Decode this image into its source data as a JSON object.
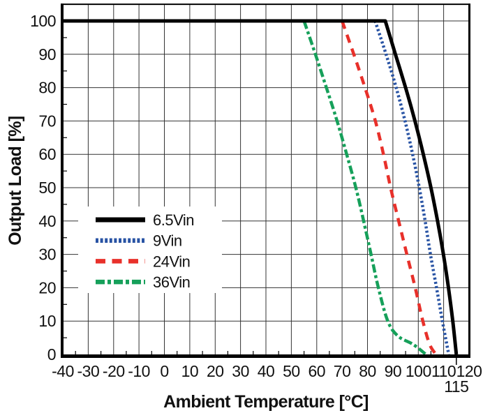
{
  "figure": {
    "background": "#ffffff"
  },
  "chart_data": {
    "type": "line",
    "title": "",
    "xlabel": "Ambient Temperature [°C]",
    "ylabel": "Output Load [%]",
    "xlim": [
      -40,
      120
    ],
    "ylim": [
      0,
      105
    ],
    "x_ticks": [
      -40,
      -30,
      -20,
      -10,
      0,
      10,
      20,
      30,
      40,
      50,
      60,
      70,
      80,
      90,
      100,
      110,
      120
    ],
    "y_ticks": [
      0,
      10,
      20,
      30,
      40,
      50,
      60,
      70,
      80,
      90,
      100
    ],
    "x_minor_interval": 5,
    "y_minor_interval": 5,
    "extra_x_tick": {
      "value": 115,
      "label": "115"
    },
    "grid": true,
    "grid_color": "#333333",
    "axis_color": "#000000",
    "legend_position": "inside-left-middle",
    "series": [
      {
        "name": "6.5Vin",
        "color": "#000000",
        "style": "solid",
        "width": 5,
        "points": [
          [
            -40,
            100
          ],
          [
            87,
            100
          ],
          [
            91,
            90
          ],
          [
            95,
            80
          ],
          [
            98.7,
            70
          ],
          [
            102,
            60
          ],
          [
            105,
            50
          ],
          [
            107.6,
            40
          ],
          [
            109.9,
            30
          ],
          [
            111.9,
            20
          ],
          [
            113.6,
            10
          ],
          [
            115,
            0
          ]
        ]
      },
      {
        "name": "9Vin",
        "color": "#2853a4",
        "style": "dotted",
        "width": 4.5,
        "points": [
          [
            83,
            100
          ],
          [
            87.3,
            90
          ],
          [
            91.3,
            80
          ],
          [
            94.8,
            70
          ],
          [
            97.8,
            60
          ],
          [
            100.4,
            50
          ],
          [
            102.7,
            40
          ],
          [
            104.8,
            30
          ],
          [
            107.2,
            20
          ],
          [
            109.5,
            10
          ],
          [
            112,
            0
          ]
        ]
      },
      {
        "name": "24Vin",
        "color": "#e8302a",
        "style": "dashed",
        "width": 4.5,
        "points": [
          [
            70,
            100
          ],
          [
            74.6,
            90
          ],
          [
            79,
            80
          ],
          [
            83.1,
            70
          ],
          [
            86.3,
            60
          ],
          [
            89.1,
            50
          ],
          [
            92.3,
            40
          ],
          [
            95.5,
            30
          ],
          [
            98.8,
            20
          ],
          [
            101.8,
            10
          ],
          [
            104.5,
            3
          ],
          [
            107,
            0
          ]
        ]
      },
      {
        "name": "36Vin",
        "color": "#16a05a",
        "style": "dashdot",
        "width": 4.5,
        "points": [
          [
            55,
            100
          ],
          [
            59.5,
            90
          ],
          [
            63.8,
            80
          ],
          [
            68,
            70
          ],
          [
            71.8,
            60
          ],
          [
            75.4,
            50
          ],
          [
            78.5,
            40
          ],
          [
            81.4,
            30
          ],
          [
            84.3,
            20
          ],
          [
            88,
            10
          ],
          [
            92,
            5.5
          ],
          [
            98,
            3
          ],
          [
            103,
            0
          ]
        ]
      }
    ]
  }
}
